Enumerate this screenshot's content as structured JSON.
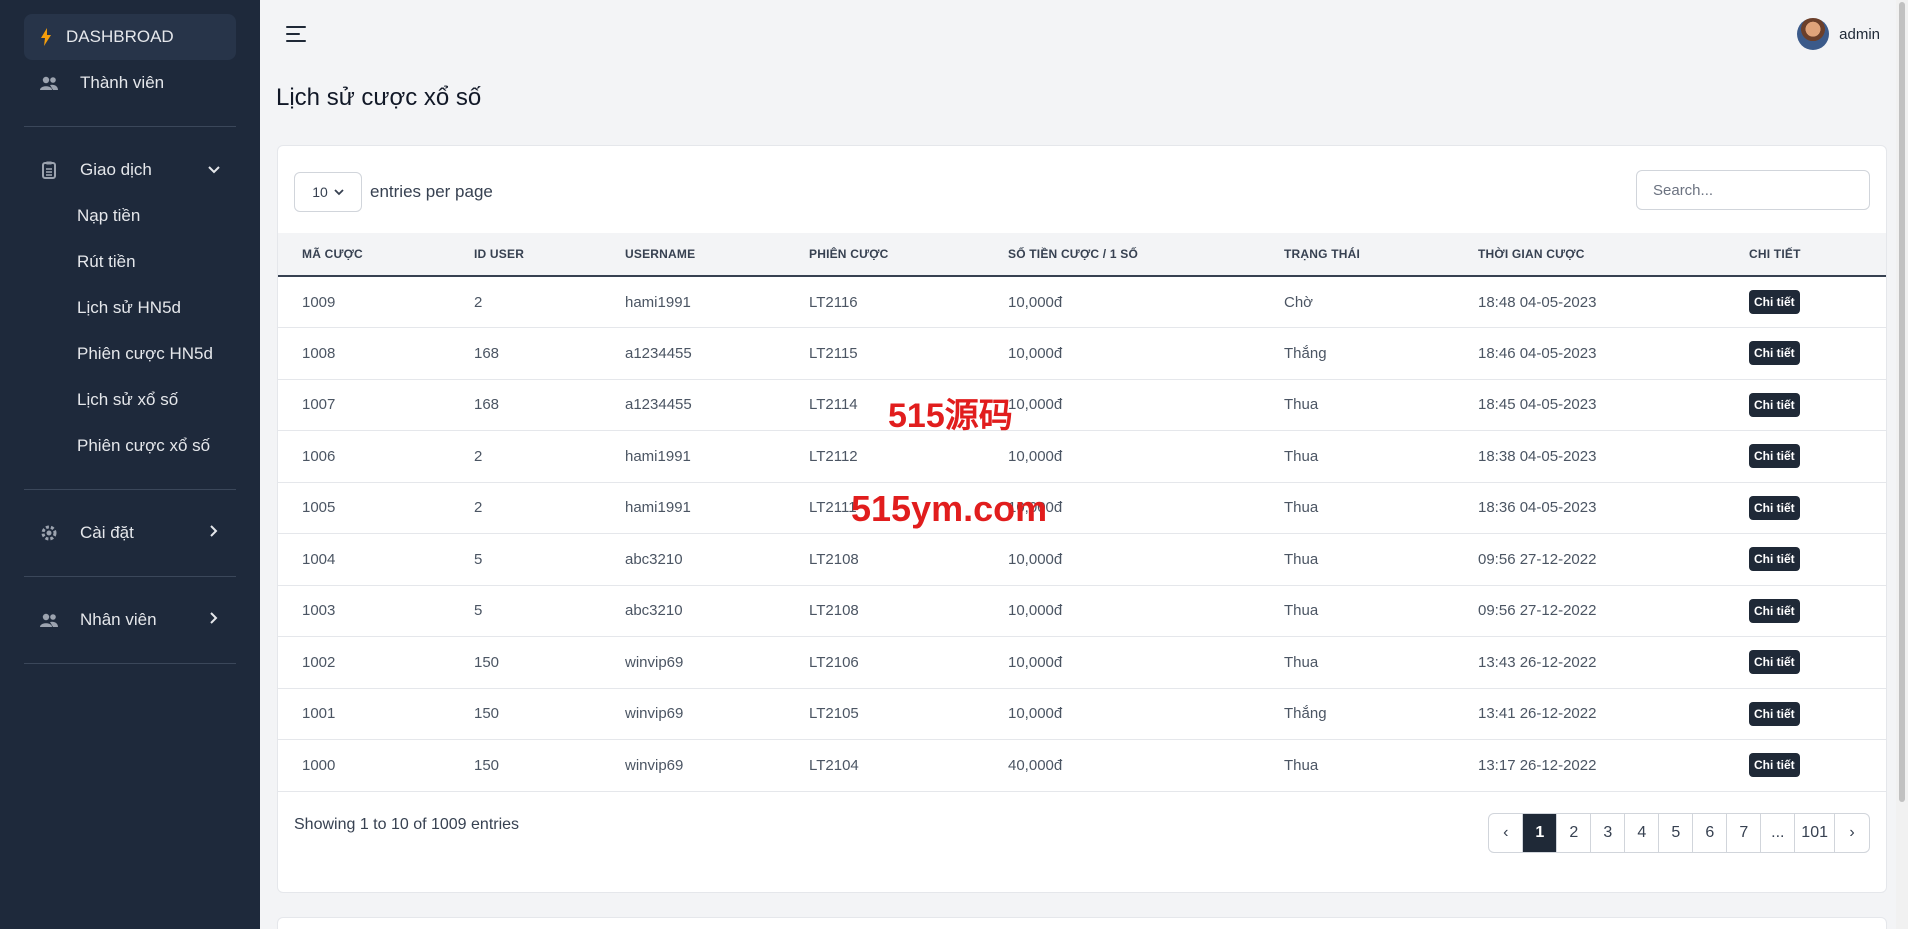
{
  "sidebar": {
    "dashboard": "DASHBROAD",
    "members": "Thành viên",
    "transactions": "Giao dịch",
    "sub_items": [
      "Nạp tiền",
      "Rút tiền",
      "Lịch sử HN5d",
      "Phiên cược HN5d",
      "Lịch sử xổ số",
      "Phiên cược xổ số"
    ],
    "settings": "Cài đặt",
    "staff": "Nhân viên"
  },
  "header": {
    "username": "admin"
  },
  "page_title": "Lịch sử cược xổ số",
  "toolbar": {
    "per_page_value": "10",
    "per_page_label": "entries per page",
    "search_placeholder": "Search..."
  },
  "table": {
    "columns": [
      "MÃ CƯỢC",
      "ID USER",
      "USERNAME",
      "PHIÊN CƯỢC",
      "SỐ TIỀN CƯỢC / 1 SỐ",
      "TRẠNG THÁI",
      "THỜI GIAN CƯỢC",
      "CHI TIẾT"
    ],
    "rows": [
      [
        "1009",
        "2",
        "hami1991",
        "LT2116",
        "10,000đ",
        "Chờ",
        "18:48 04-05-2023",
        "Chi tiết"
      ],
      [
        "1008",
        "168",
        "a1234455",
        "LT2115",
        "10,000đ",
        "Thắng",
        "18:46 04-05-2023",
        "Chi tiết"
      ],
      [
        "1007",
        "168",
        "a1234455",
        "LT2114",
        "10,000đ",
        "Thua",
        "18:45 04-05-2023",
        "Chi tiết"
      ],
      [
        "1006",
        "2",
        "hami1991",
        "LT2112",
        "10,000đ",
        "Thua",
        "18:38 04-05-2023",
        "Chi tiết"
      ],
      [
        "1005",
        "2",
        "hami1991",
        "LT2111",
        "10,000đ",
        "Thua",
        "18:36 04-05-2023",
        "Chi tiết"
      ],
      [
        "1004",
        "5",
        "abc3210",
        "LT2108",
        "10,000đ",
        "Thua",
        "09:56 27-12-2022",
        "Chi tiết"
      ],
      [
        "1003",
        "5",
        "abc3210",
        "LT2108",
        "10,000đ",
        "Thua",
        "09:56 27-12-2022",
        "Chi tiết"
      ],
      [
        "1002",
        "150",
        "winvip69",
        "LT2106",
        "10,000đ",
        "Thua",
        "13:43 26-12-2022",
        "Chi tiết"
      ],
      [
        "1001",
        "150",
        "winvip69",
        "LT2105",
        "10,000đ",
        "Thắng",
        "13:41 26-12-2022",
        "Chi tiết"
      ],
      [
        "1000",
        "150",
        "winvip69",
        "LT2104",
        "40,000đ",
        "Thua",
        "13:17 26-12-2022",
        "Chi tiết"
      ]
    ]
  },
  "footer": {
    "showing": "Showing 1 to 10 of 1009 entries",
    "pages": [
      "‹",
      "1",
      "2",
      "3",
      "4",
      "5",
      "6",
      "7",
      "...",
      "101",
      "›"
    ],
    "active_page": "1"
  },
  "watermark": {
    "line1": "515源码",
    "line2": "515ym.com"
  }
}
